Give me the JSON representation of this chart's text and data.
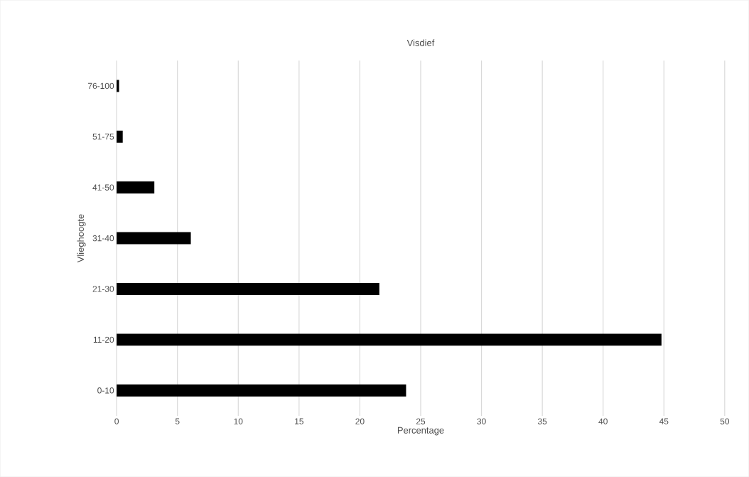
{
  "chart_data": {
    "type": "bar",
    "orientation": "horizontal",
    "title": "Visdief",
    "xlabel": "Percentage",
    "ylabel": "Vlieghoogte",
    "categories": [
      "76-100",
      "51-75",
      "41-50",
      "31-40",
      "21-30",
      "11-20",
      "0-10"
    ],
    "values": [
      0.2,
      0.5,
      3.1,
      6.1,
      21.6,
      44.8,
      23.8
    ],
    "color": "#000000",
    "xlim": [
      0,
      50
    ],
    "xticks": [
      0,
      5,
      10,
      15,
      20,
      25,
      30,
      35,
      40,
      45,
      50
    ],
    "grid": "x"
  }
}
